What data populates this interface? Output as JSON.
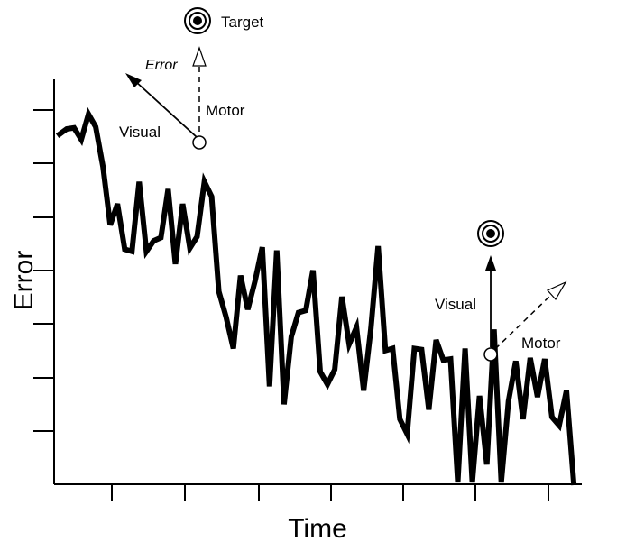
{
  "chart_data": {
    "type": "line",
    "xlabel": "Time",
    "ylabel": "Error",
    "series": [
      {
        "values": [
          88,
          93,
          94,
          83,
          107,
          95,
          57,
          2,
          22,
          -21,
          -23,
          43,
          -23,
          -13,
          -10,
          36,
          -35,
          22,
          -20,
          -9,
          43,
          29,
          -61,
          -85,
          -115,
          -46,
          -78,
          -51,
          -19,
          -151,
          -22,
          -168,
          -104,
          -81,
          -79,
          -41,
          -137,
          -149,
          -135,
          -66,
          -111,
          -95,
          -155,
          -96,
          -18,
          -117,
          -115,
          -182,
          -196,
          -115,
          -116,
          -173,
          -107,
          -126,
          -125,
          -242,
          -115,
          -242,
          -160,
          -225,
          -97,
          -242,
          -165,
          -127,
          -182,
          -124,
          -161,
          -125,
          -180,
          -188,
          -155,
          -242
        ]
      }
    ],
    "xlim": [
      0,
      100
    ],
    "ylim": [
      -242,
      140
    ],
    "grid": false,
    "annotations": {
      "top": {
        "target_label": "Target",
        "error_label": "Error",
        "visual_label": "Visual",
        "motor_label": "Motor"
      },
      "right": {
        "visual_label": "Visual",
        "motor_label": "Motor"
      }
    }
  }
}
